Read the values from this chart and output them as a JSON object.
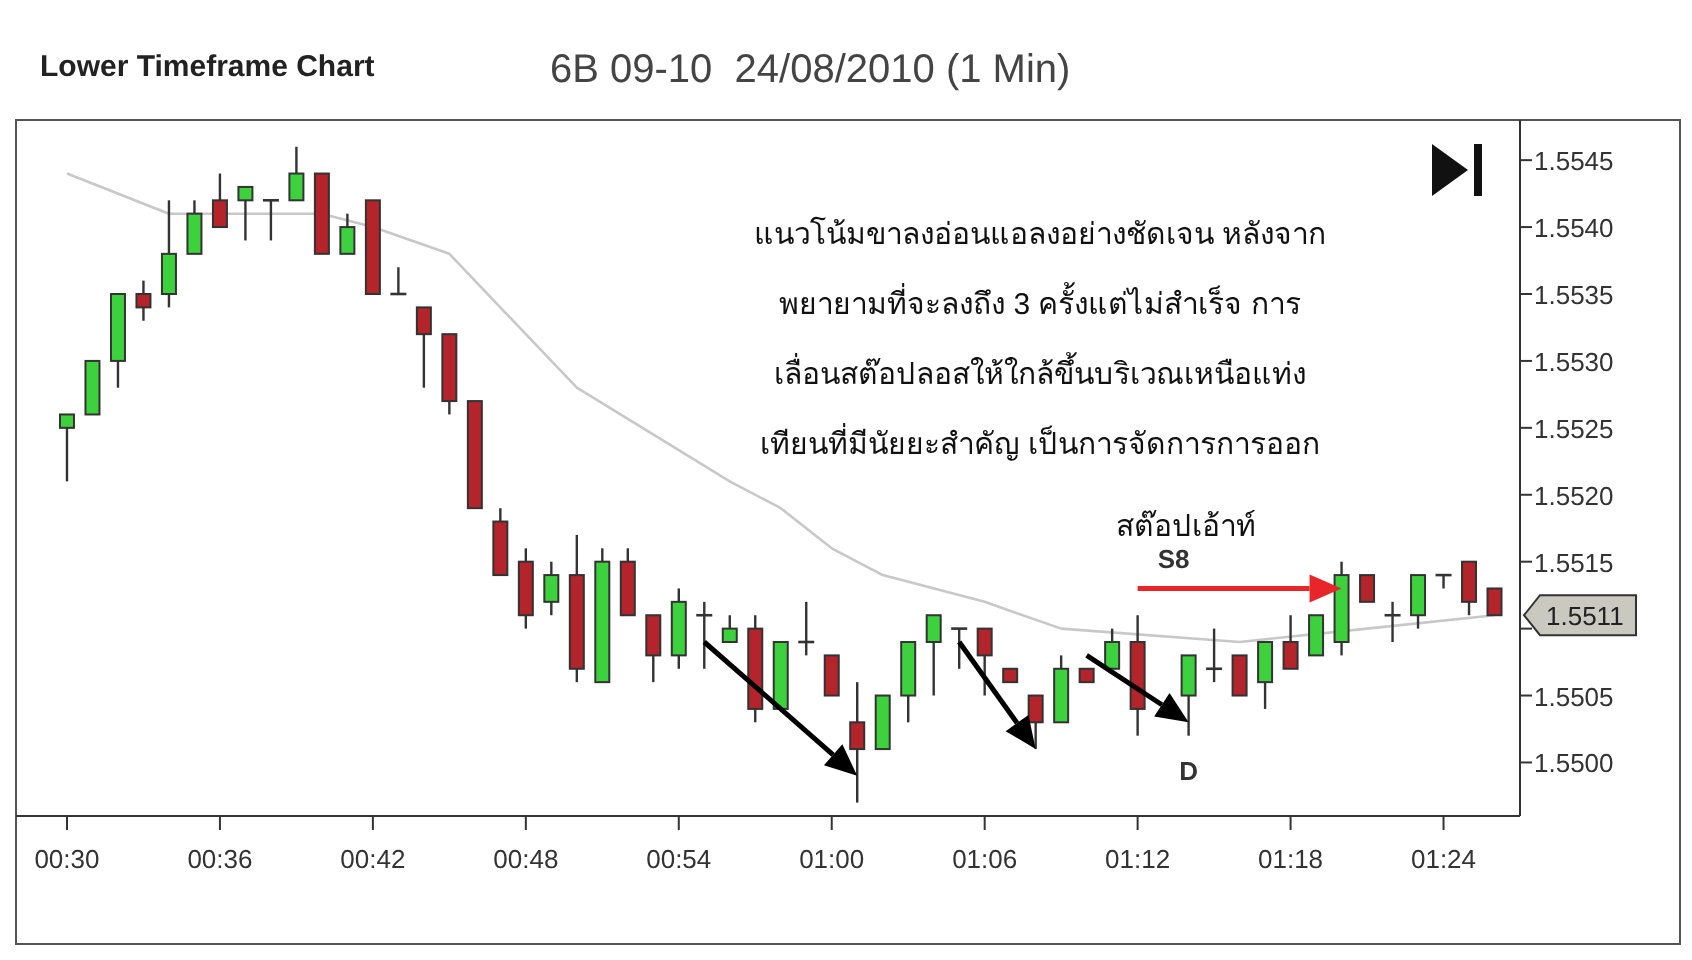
{
  "chart_data": {
    "type": "candlestick",
    "title": "Lower Timeframe Chart",
    "subtitle": "6B 09-10  24/08/2010 (1 Min)",
    "x": [
      "2010-08-24T00:30",
      "2010-08-24T00:31",
      "2010-08-24T00:32",
      "2010-08-24T00:33",
      "2010-08-24T00:34",
      "2010-08-24T00:35",
      "2010-08-24T00:36",
      "2010-08-24T00:37",
      "2010-08-24T00:38",
      "2010-08-24T00:39",
      "2010-08-24T00:40",
      "2010-08-24T00:41",
      "2010-08-24T00:42",
      "2010-08-24T00:43",
      "2010-08-24T00:44",
      "2010-08-24T00:45",
      "2010-08-24T00:46",
      "2010-08-24T00:47",
      "2010-08-24T00:48",
      "2010-08-24T00:49",
      "2010-08-24T00:50",
      "2010-08-24T00:51",
      "2010-08-24T00:52",
      "2010-08-24T00:53",
      "2010-08-24T00:54",
      "2010-08-24T00:55",
      "2010-08-24T00:56",
      "2010-08-24T00:57",
      "2010-08-24T00:58",
      "2010-08-24T00:59",
      "2010-08-24T01:00",
      "2010-08-24T01:01",
      "2010-08-24T01:02",
      "2010-08-24T01:03",
      "2010-08-24T01:04",
      "2010-08-24T01:05",
      "2010-08-24T01:06",
      "2010-08-24T01:07",
      "2010-08-24T01:08",
      "2010-08-24T01:09",
      "2010-08-24T01:10",
      "2010-08-24T01:11",
      "2010-08-24T01:12",
      "2010-08-24T01:14",
      "2010-08-24T01:15",
      "2010-08-24T01:16",
      "2010-08-24T01:17",
      "2010-08-24T01:18",
      "2010-08-24T01:19",
      "2010-08-24T01:20",
      "2010-08-24T01:21",
      "2010-08-24T01:22",
      "2010-08-24T01:23",
      "2010-08-24T01:24",
      "2010-08-24T01:25",
      "2010-08-24T01:26"
    ],
    "ohlc": [
      [
        1.5525,
        1.5526,
        1.5521,
        1.5526
      ],
      [
        1.5526,
        1.553,
        1.5526,
        1.553
      ],
      [
        1.553,
        1.5535,
        1.5528,
        1.5535
      ],
      [
        1.5535,
        1.5536,
        1.5533,
        1.5534
      ],
      [
        1.5535,
        1.5542,
        1.5534,
        1.5538
      ],
      [
        1.5538,
        1.5542,
        1.5538,
        1.5541
      ],
      [
        1.5542,
        1.5544,
        1.554,
        1.554
      ],
      [
        1.5542,
        1.5543,
        1.5539,
        1.5543
      ],
      [
        1.5542,
        1.5542,
        1.5539,
        1.5542
      ],
      [
        1.5542,
        1.5546,
        1.5542,
        1.5544
      ],
      [
        1.5544,
        1.5544,
        1.5538,
        1.5538
      ],
      [
        1.5538,
        1.5541,
        1.5538,
        1.554
      ],
      [
        1.5542,
        1.5542,
        1.5535,
        1.5535
      ],
      [
        1.5535,
        1.5537,
        1.5535,
        1.5535
      ],
      [
        1.5534,
        1.5534,
        1.5528,
        1.5532
      ],
      [
        1.5532,
        1.5532,
        1.5526,
        1.5527
      ],
      [
        1.5527,
        1.5527,
        1.5519,
        1.5519
      ],
      [
        1.5518,
        1.5519,
        1.5514,
        1.5514
      ],
      [
        1.5515,
        1.5516,
        1.551,
        1.5511
      ],
      [
        1.5512,
        1.5515,
        1.5511,
        1.5514
      ],
      [
        1.5514,
        1.5517,
        1.5506,
        1.5507
      ],
      [
        1.5506,
        1.5516,
        1.5506,
        1.5515
      ],
      [
        1.5515,
        1.5516,
        1.5511,
        1.5511
      ],
      [
        1.5511,
        1.5511,
        1.5506,
        1.5508
      ],
      [
        1.5508,
        1.5513,
        1.5507,
        1.5512
      ],
      [
        1.5511,
        1.5512,
        1.5507,
        1.5511
      ],
      [
        1.5509,
        1.5511,
        1.5509,
        1.551
      ],
      [
        1.551,
        1.5511,
        1.5503,
        1.5504
      ],
      [
        1.5504,
        1.5509,
        1.5504,
        1.5509
      ],
      [
        1.5509,
        1.5512,
        1.5508,
        1.5509
      ],
      [
        1.5508,
        1.5508,
        1.5505,
        1.5505
      ],
      [
        1.5503,
        1.5506,
        1.5497,
        1.5501
      ],
      [
        1.5501,
        1.5505,
        1.5501,
        1.5505
      ],
      [
        1.5505,
        1.5509,
        1.5503,
        1.5509
      ],
      [
        1.5509,
        1.5511,
        1.5505,
        1.5511
      ],
      [
        1.551,
        1.551,
        1.5507,
        1.551
      ],
      [
        1.551,
        1.551,
        1.5505,
        1.5508
      ],
      [
        1.5507,
        1.5507,
        1.5506,
        1.5506
      ],
      [
        1.5505,
        1.5505,
        1.5501,
        1.5503
      ],
      [
        1.5503,
        1.5508,
        1.5503,
        1.5507
      ],
      [
        1.5507,
        1.5507,
        1.5506,
        1.5506
      ],
      [
        1.5507,
        1.551,
        1.5507,
        1.5509
      ],
      [
        1.5509,
        1.5511,
        1.5502,
        1.5504
      ],
      [
        1.5505,
        1.5508,
        1.5502,
        1.5508
      ],
      [
        1.5507,
        1.551,
        1.5506,
        1.5507
      ],
      [
        1.5508,
        1.5508,
        1.5505,
        1.5505
      ],
      [
        1.5506,
        1.5509,
        1.5504,
        1.5509
      ],
      [
        1.5509,
        1.5511,
        1.5507,
        1.5507
      ],
      [
        1.5508,
        1.5511,
        1.5508,
        1.5511
      ],
      [
        1.5509,
        1.5515,
        1.5508,
        1.5514
      ],
      [
        1.5514,
        1.5514,
        1.5512,
        1.5512
      ],
      [
        1.5511,
        1.5512,
        1.5509,
        1.5511
      ],
      [
        1.5511,
        1.5514,
        1.551,
        1.5514
      ],
      [
        1.5514,
        1.5514,
        1.5513,
        1.5514
      ],
      [
        1.5515,
        1.5515,
        1.5511,
        1.5512
      ],
      [
        1.5513,
        1.5513,
        1.5511,
        1.5511
      ]
    ],
    "series": [
      {
        "type": "line",
        "color": "#c8c8c8",
        "x": [
          "2010-08-24T00:30",
          "2010-08-24T00:34",
          "2010-08-24T00:40",
          "2010-08-24T00:42",
          "2010-08-24T00:45",
          "2010-08-24T00:48",
          "2010-08-24T00:50",
          "2010-08-24T00:56",
          "2010-08-24T00:58",
          "2010-08-24T01:00",
          "2010-08-24T01:02",
          "2010-08-24T01:06",
          "2010-08-24T01:09",
          "2010-08-24T01:16",
          "2010-08-24T01:21",
          "2010-08-24T01:26"
        ],
        "values": [
          1.5544,
          1.5541,
          1.5541,
          1.554,
          1.5538,
          1.5532,
          1.5528,
          1.5521,
          1.5519,
          1.5516,
          1.5514,
          1.5512,
          1.551,
          1.5509,
          1.551,
          1.5511
        ]
      }
    ],
    "xlim": [
      "2010-08-24T00:28",
      "2010-08-24T01:27"
    ],
    "xticks": [
      {
        "value": "2010-08-24T00:30",
        "label": "00:30"
      },
      {
        "value": "2010-08-24T00:36",
        "label": "00:36"
      },
      {
        "value": "2010-08-24T00:42",
        "label": "00:42"
      },
      {
        "value": "2010-08-24T00:48",
        "label": "00:48"
      },
      {
        "value": "2010-08-24T00:54",
        "label": "00:54"
      },
      {
        "value": "2010-08-24T01:00",
        "label": "01:00"
      },
      {
        "value": "2010-08-24T01:06",
        "label": "01:06"
      },
      {
        "value": "2010-08-24T01:12",
        "label": "01:12"
      },
      {
        "value": "2010-08-24T01:18",
        "label": "01:18"
      },
      {
        "value": "2010-08-24T01:24",
        "label": "01:24"
      }
    ],
    "ylim": [
      1.5496,
      1.5548
    ],
    "yticks": [
      {
        "value": 1.55,
        "label": "1.5500"
      },
      1.5505,
      {
        "value": 1.551,
        "label": null
      },
      1.5515,
      {
        "value": 1.552,
        "label": "1.5520"
      },
      1.5525,
      {
        "value": 1.553,
        "label": "1.5530"
      },
      1.5535,
      {
        "value": 1.554,
        "label": "1.5540"
      },
      1.5545
    ],
    "grid": false,
    "annotations": [
      "แนวโน้มขาลงอ่อนแอลงอย่างชัดเจน หลังจาก",
      "พยายามที่จะลงถึง 3 ครั้งแต่ไม่สำเร็จ การ",
      "เลื่อนสต๊อปลอสให้ใกล้ขึ้นบริเวณเหนือแท่ง",
      "เทียนที่มีนัยยะสำคัญ เป็นการจัดการการออก",
      "สต๊อปเอ้าท์",
      "S8",
      "1.5511",
      {
        "text": "D",
        "x": "2010-08-24T01:14",
        "y": 1.5502
      }
    ]
  }
}
